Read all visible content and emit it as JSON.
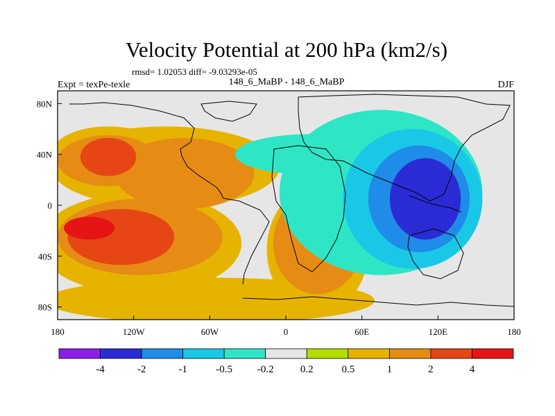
{
  "chart_data": {
    "type": "contour-map",
    "title": "Velocity Potential at 200 hPa (km2/s)",
    "stats": "rmsd= 1.02053 diff= -9.03293e-05",
    "left_label": "Expt = texPe-texle",
    "center_label": "148_6_MaBP - 148_6_MaBP",
    "right_label": "DJF",
    "x_ticks": [
      {
        "lon": -180,
        "label": "180"
      },
      {
        "lon": -120,
        "label": "120W"
      },
      {
        "lon": -60,
        "label": "60W"
      },
      {
        "lon": 0,
        "label": "0"
      },
      {
        "lon": 60,
        "label": "60E"
      },
      {
        "lon": 120,
        "label": "120E"
      },
      {
        "lon": 180,
        "label": "180"
      }
    ],
    "y_ticks": [
      {
        "lat": 80,
        "label": "80N"
      },
      {
        "lat": 40,
        "label": "40N"
      },
      {
        "lat": 0,
        "label": "0"
      },
      {
        "lat": -40,
        "label": "40S"
      },
      {
        "lat": -80,
        "label": "80S"
      }
    ],
    "xlim": [
      -180,
      180
    ],
    "ylim": [
      -90,
      90
    ],
    "colorbar": {
      "levels": [
        "-4",
        "-2",
        "-1",
        "-0.5",
        "-0.2",
        "0.2",
        "0.5",
        "1",
        "2",
        "4"
      ],
      "colors": [
        "#8c1ee6",
        "#2b2bd6",
        "#1e8ce8",
        "#19c8e6",
        "#2ee6c6",
        "#e6e6e6",
        "#b4dc00",
        "#e6b400",
        "#e68c14",
        "#e64614",
        "#e61414"
      ]
    },
    "fields": [
      {
        "name": "north-atlantic-high",
        "level": "0.5",
        "lon": -95,
        "lat": 30,
        "rx": 90,
        "ry": 32
      },
      {
        "name": "north-pacific-high",
        "level": "0.5",
        "lon": -140,
        "lat": 40,
        "rx": 45,
        "ry": 22
      },
      {
        "name": "pacific-atlantic-tropical-high",
        "level": "0.5",
        "lon": -115,
        "lat": -30,
        "rx": 80,
        "ry": 40
      },
      {
        "name": "southern-band-high",
        "level": "0.5",
        "lon": -60,
        "lat": -75,
        "rx": 130,
        "ry": 18
      },
      {
        "name": "africa-high",
        "level": "0.5",
        "lon": 25,
        "lat": -35,
        "rx": 40,
        "ry": 50
      },
      {
        "name": "north-pacific-core",
        "level": "1",
        "lon": -140,
        "lat": 35,
        "rx": 40,
        "ry": 20
      },
      {
        "name": "central-atlantic-core",
        "level": "1",
        "lon": -80,
        "lat": 25,
        "rx": 55,
        "ry": 28
      },
      {
        "name": "south-pacific-core",
        "level": "1",
        "lon": -115,
        "lat": -25,
        "rx": 65,
        "ry": 30
      },
      {
        "name": "africa-core",
        "level": "1",
        "lon": 25,
        "lat": -30,
        "rx": 35,
        "ry": 40
      },
      {
        "name": "north-pacific-max",
        "level": "2",
        "lon": -140,
        "lat": 38,
        "rx": 22,
        "ry": 15
      },
      {
        "name": "south-pacific-max",
        "level": "2",
        "lon": -130,
        "lat": -25,
        "rx": 42,
        "ry": 22
      },
      {
        "name": "africa-max",
        "level": "2",
        "lon": 35,
        "lat": -15,
        "rx": 18,
        "ry": 18
      },
      {
        "name": "pacific-peak",
        "level": "4",
        "lon": -155,
        "lat": -18,
        "rx": 20,
        "ry": 9
      },
      {
        "name": "asia-pacific-low",
        "level": "-0.2",
        "lon": 75,
        "lat": 10,
        "rx": 80,
        "ry": 65
      },
      {
        "name": "eurasia-band-low",
        "level": "-0.2",
        "lon": 20,
        "lat": 40,
        "rx": 60,
        "ry": 16
      },
      {
        "name": "warm-pool-low",
        "level": "-0.5",
        "lon": 100,
        "lat": 5,
        "rx": 55,
        "ry": 55
      },
      {
        "name": "warm-pool-core",
        "level": "-1",
        "lon": 105,
        "lat": 5,
        "rx": 40,
        "ry": 42
      },
      {
        "name": "warm-pool-center",
        "level": "-2",
        "lon": 110,
        "lat": 5,
        "rx": 28,
        "ry": 32
      }
    ]
  }
}
